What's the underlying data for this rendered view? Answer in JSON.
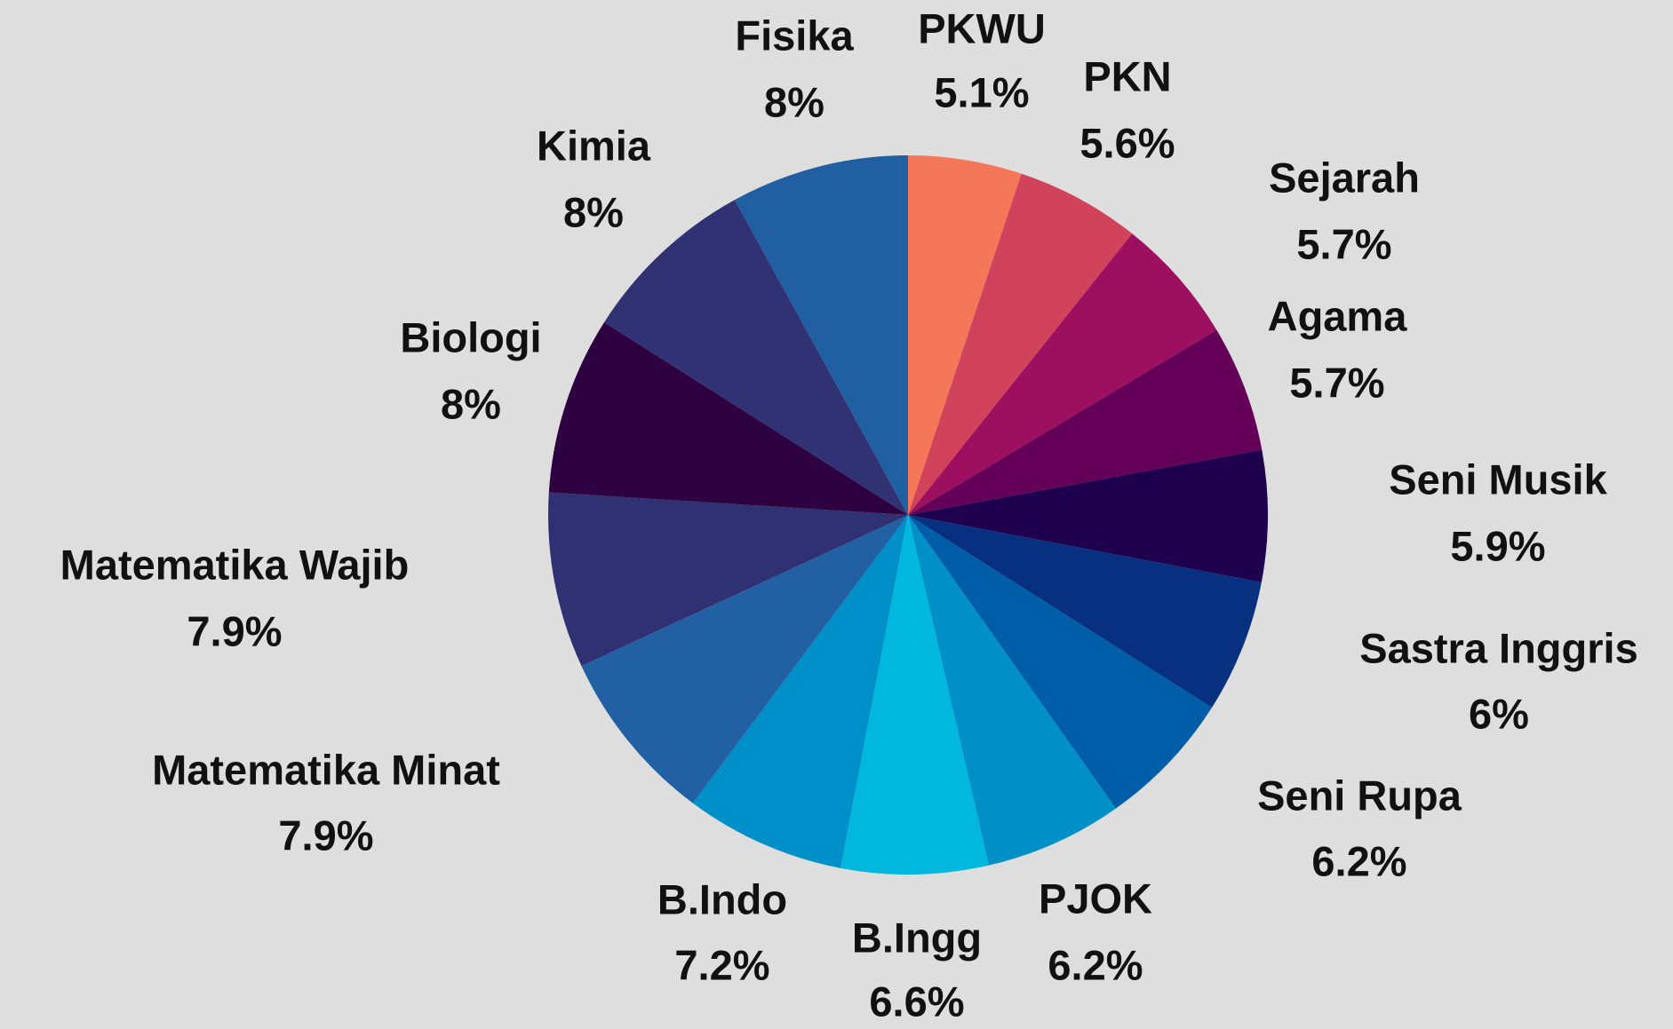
{
  "chart_data": {
    "type": "pie",
    "categories": [
      "PKWU",
      "PKN",
      "Sejarah",
      "Agama",
      "Seni Musik",
      "Sastra Inggris",
      "Seni Rupa",
      "PJOK",
      "B.Ingg",
      "B.Indo",
      "Matematika Minat",
      "Matematika Wajib",
      "Biologi",
      "Kimia",
      "Fisika"
    ],
    "values": [
      5.1,
      5.6,
      5.7,
      5.7,
      5.9,
      6,
      6.2,
      6.2,
      6.6,
      7.2,
      7.9,
      7.9,
      8,
      8,
      8
    ],
    "value_labels": [
      "5.1%",
      "5.6%",
      "5.7%",
      "5.7%",
      "5.9%",
      "6%",
      "6.2%",
      "6.2%",
      "6.6%",
      "7.2%",
      "7.9%",
      "7.9%",
      "8%",
      "8%",
      "8%"
    ],
    "colors": [
      "#f4775a",
      "#d1435b",
      "#9d1060",
      "#650058",
      "#1f004e",
      "#073080",
      "#005ea8",
      "#0090c8",
      "#00b8de",
      "#0090c9",
      "#2160a2",
      "#2f3172",
      "#2e0241",
      "#313274",
      "#205fa2"
    ]
  }
}
